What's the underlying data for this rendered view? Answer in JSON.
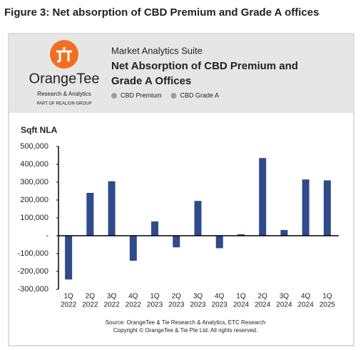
{
  "figure_caption": "Figure 3: Net absorption of CBD Premium and Grade A offices",
  "header": {
    "brand": "OrangeTee",
    "tagline": "Research & Analytics",
    "group": "PART OF REALION GROUP",
    "suite": "Market Analytics Suite"
  },
  "chart_data": {
    "type": "bar",
    "title": [
      "Net Absorption of CBD Premium and",
      "Grade A Offices"
    ],
    "legend": [
      {
        "name": "CBD Premium",
        "color": "#9e9e9e"
      },
      {
        "name": "CBD Grade A",
        "color": "#9e9e9e"
      }
    ],
    "y_label": "Sqft NLA",
    "categories": [
      [
        "1Q",
        "2022"
      ],
      [
        "2Q",
        "2022"
      ],
      [
        "3Q",
        "2022"
      ],
      [
        "4Q",
        "2022"
      ],
      [
        "1Q",
        "2023"
      ],
      [
        "2Q",
        "2023"
      ],
      [
        "3Q",
        "2023"
      ],
      [
        "4Q",
        "2023"
      ],
      [
        "1Q",
        "2024"
      ],
      [
        "2Q",
        "2024"
      ],
      [
        "3Q",
        "2024"
      ],
      [
        "4Q",
        "2024"
      ],
      [
        "1Q",
        "2025"
      ]
    ],
    "values": [
      -245000,
      240000,
      305000,
      -140000,
      80000,
      -65000,
      195000,
      -70000,
      8000,
      435000,
      32000,
      315000,
      310000
    ],
    "color": "#2f4b8c",
    "ylim": [
      -300000,
      500000
    ],
    "yticks": [
      {
        "value": -300000,
        "label": "-300,000"
      },
      {
        "value": -200000,
        "label": "-200,000"
      },
      {
        "value": -100000,
        "label": "-100,000"
      },
      {
        "value": 0,
        "label": "-"
      },
      {
        "value": 100000,
        "label": "100,000"
      },
      {
        "value": 200000,
        "label": "200,000"
      },
      {
        "value": 300000,
        "label": "300,000"
      },
      {
        "value": 400000,
        "label": "400,000"
      },
      {
        "value": 500000,
        "label": "500,000"
      }
    ],
    "source": [
      "Source: OrangeTee & Tie Research & Analytics, ETC Research",
      "Copyright © OrangeTee & Tie Pte Ltd. All rights reserved."
    ]
  }
}
